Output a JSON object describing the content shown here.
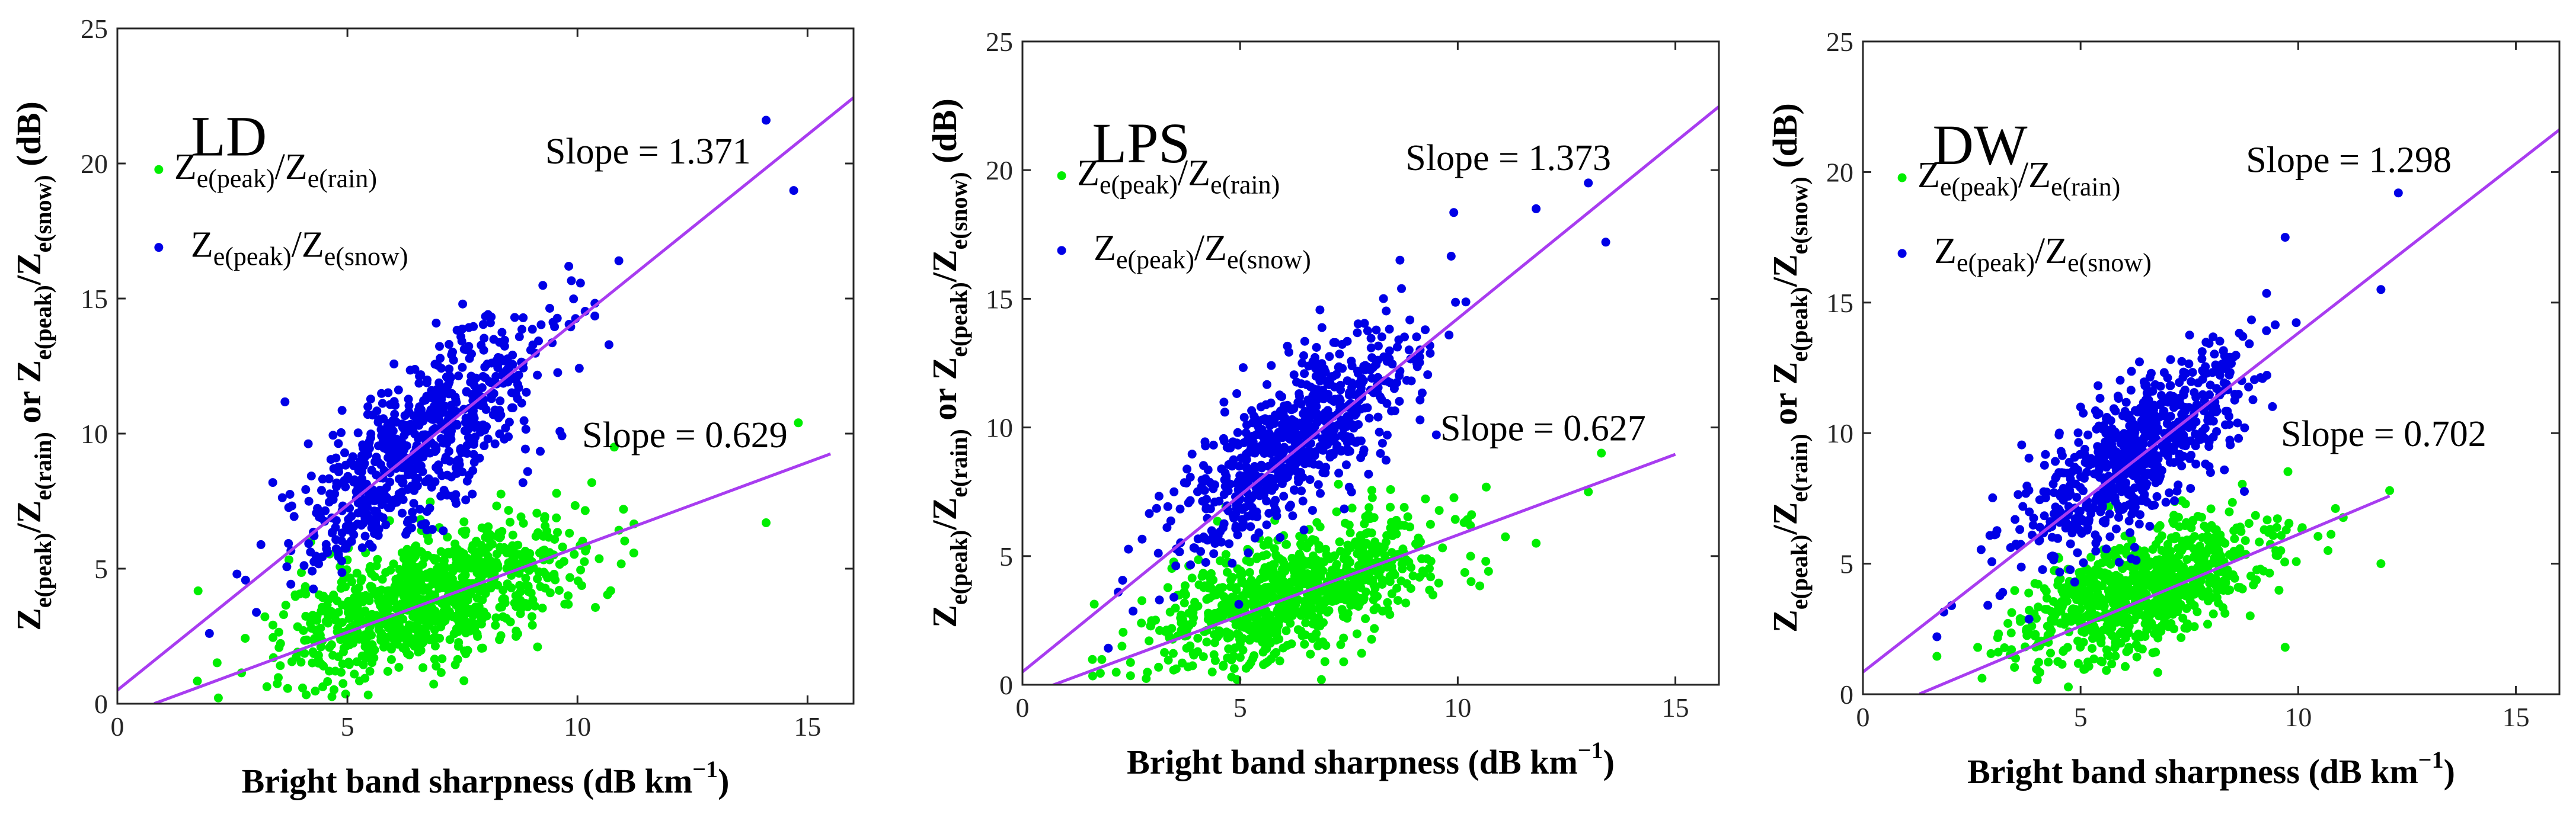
{
  "colors": {
    "rain": "#00ee00",
    "snow": "#0000e6",
    "fit": "#a83cf0",
    "axis": "#262626"
  },
  "chart_data": [
    {
      "type": "scatter",
      "title": "LD",
      "xlabel": "Bright band sharpness (dB km",
      "xlabel_sup": "−1",
      "xlabel_end": ")",
      "ylabel": "Z_e(peak)/Z_e(rain) or Z_e(peak)/Z_e(snow) (dB)",
      "xlim": [
        0,
        16
      ],
      "ylim": [
        0,
        25
      ],
      "xticks": [
        "0",
        "5",
        "10",
        "15"
      ],
      "yticks": [
        "0",
        "5",
        "10",
        "15",
        "20",
        "25"
      ],
      "legend": [
        "Z_e(peak)/Z_e(rain)",
        "Z_e(peak)/Z_e(snow)"
      ],
      "series": [
        {
          "name": "Z_e(peak)/Z_e(rain)",
          "color": "rain",
          "n": 900,
          "center": [
            6.8,
            3.9
          ],
          "spread": [
            1.6,
            1.5
          ],
          "slope": 0.629,
          "outliers": [
            [
              14.1,
              6.7
            ],
            [
              14.8,
              10.4
            ],
            [
              11.0,
              7.2
            ],
            [
              10.8,
              9.5
            ]
          ]
        },
        {
          "name": "Z_e(peak)/Z_e(snow)",
          "color": "snow",
          "n": 700,
          "center": [
            6.6,
            9.6
          ],
          "spread": [
            1.4,
            1.9
          ],
          "slope": 1.371,
          "outliers": [
            [
              14.1,
              21.6
            ],
            [
              14.7,
              19.0
            ],
            [
              10.9,
              16.4
            ],
            [
              2.0,
              2.6
            ],
            [
              2.6,
              4.8
            ]
          ]
        }
      ],
      "fits": [
        {
          "label": "Slope = 1.371",
          "slope": 1.371,
          "intercept": 0.5,
          "x": [
            0,
            16
          ]
        },
        {
          "label": "Slope = 0.629",
          "slope": 0.629,
          "intercept": -0.5,
          "x": [
            0.8,
            15.5
          ]
        }
      ]
    },
    {
      "type": "scatter",
      "title": "LPS",
      "xlabel": "Bright band sharpness (dB km",
      "xlabel_sup": "−1",
      "xlabel_end": ")",
      "ylabel": "Z_e(peak)/Z_e(rain) or Z_e(peak)/Z_e(snow) (dB)",
      "xlim": [
        0,
        16
      ],
      "ylim": [
        0,
        25
      ],
      "xticks": [
        "0",
        "5",
        "10",
        "15"
      ],
      "yticks": [
        "0",
        "5",
        "10",
        "15",
        "20",
        "25"
      ],
      "legend": [
        "Z_e(peak)/Z_e(rain)",
        "Z_e(peak)/Z_e(snow)"
      ],
      "series": [
        {
          "name": "Z_e(peak)/Z_e(rain)",
          "color": "rain",
          "n": 850,
          "center": [
            6.3,
            3.6
          ],
          "spread": [
            1.6,
            1.5
          ],
          "slope": 0.627,
          "outliers": [
            [
              13.0,
              7.5
            ],
            [
              13.3,
              9.0
            ],
            [
              11.8,
              5.5
            ]
          ]
        },
        {
          "name": "Z_e(peak)/Z_e(snow)",
          "color": "snow",
          "n": 700,
          "center": [
            6.2,
            9.4
          ],
          "spread": [
            1.4,
            1.9
          ],
          "slope": 1.373,
          "outliers": [
            [
              13.0,
              19.5
            ],
            [
              11.8,
              18.5
            ],
            [
              13.4,
              17.2
            ],
            [
              2.2,
              3.6
            ]
          ]
        }
      ],
      "fits": [
        {
          "label": "Slope = 1.373",
          "slope": 1.373,
          "intercept": 0.5,
          "x": [
            0,
            16
          ]
        },
        {
          "label": "Slope = 0.627",
          "slope": 0.627,
          "intercept": -0.45,
          "x": [
            0.7,
            15.0
          ]
        }
      ]
    },
    {
      "type": "scatter",
      "title": "DW",
      "xlabel": "Bright band sharpness (dB km",
      "xlabel_sup": "−1",
      "xlabel_end": ")",
      "ylabel": "Z_e(peak)/Z_e(rain) or Z_e(peak)/Z_e(snow) (dB)",
      "xlim": [
        0,
        16
      ],
      "ylim": [
        0,
        25
      ],
      "xticks": [
        "0",
        "5",
        "10",
        "15"
      ],
      "yticks": [
        "0",
        "5",
        "10",
        "15",
        "20",
        "25"
      ],
      "legend": [
        "Z_e(peak)/Z_e(rain)",
        "Z_e(peak)/Z_e(snow)"
      ],
      "series": [
        {
          "name": "Z_e(peak)/Z_e(rain)",
          "color": "rain",
          "n": 850,
          "center": [
            6.4,
            4.0
          ],
          "spread": [
            1.4,
            1.4
          ],
          "slope": 0.702,
          "outliers": [
            [
              11.9,
              5.0
            ],
            [
              12.1,
              7.8
            ],
            [
              9.7,
              1.8
            ]
          ]
        },
        {
          "name": "Z_e(peak)/Z_e(snow)",
          "color": "snow",
          "n": 700,
          "center": [
            6.3,
            9.3
          ],
          "spread": [
            1.3,
            1.8
          ],
          "slope": 1.298,
          "outliers": [
            [
              12.3,
              19.2
            ],
            [
              9.7,
              17.5
            ],
            [
              11.9,
              15.5
            ],
            [
              1.7,
              2.2
            ]
          ]
        }
      ],
      "fits": [
        {
          "label": "Slope = 1.298",
          "slope": 1.298,
          "intercept": 0.85,
          "x": [
            0,
            16
          ]
        },
        {
          "label": "Slope = 0.702",
          "slope": 0.702,
          "intercept": -0.9,
          "x": [
            1.3,
            12.1
          ]
        }
      ]
    }
  ]
}
